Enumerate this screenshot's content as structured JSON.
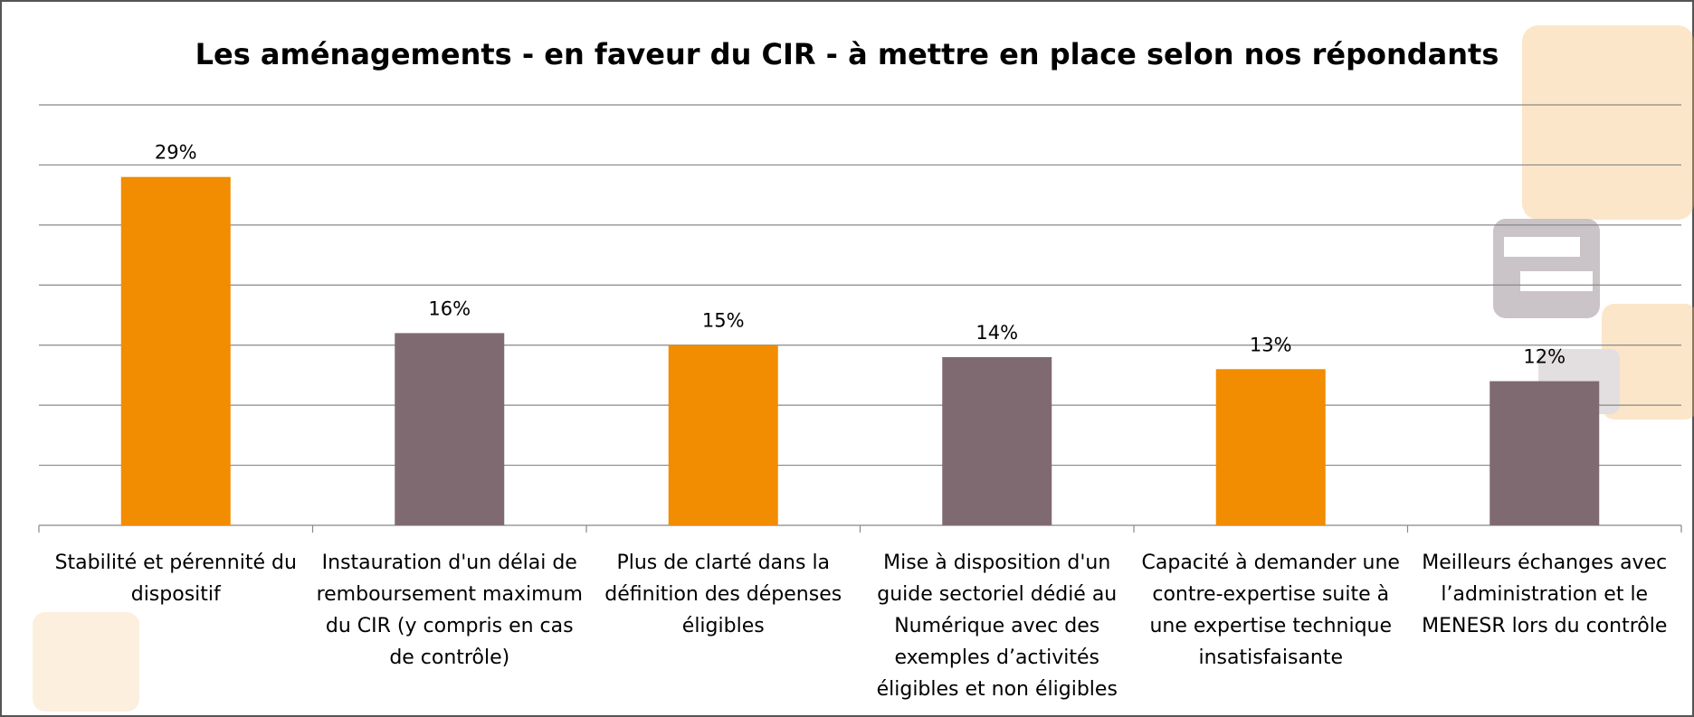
{
  "chart_data": {
    "type": "bar",
    "title": "Les aménagements - en faveur du CIR - à mettre en place selon nos répondants",
    "categories": [
      "Stabilité et pérennité du dispositif",
      "Instauration d'un délai de remboursement maximum du CIR (y compris en cas de contrôle)",
      "Plus de clarté dans la définition des dépenses éligibles",
      "Mise à disposition d'un guide sectoriel dédié au Numérique avec des exemples d’activités éligibles et non éligibles",
      "Capacité à demander une contre-expertise suite à une expertise technique insatisfaisante",
      "Meilleurs échanges avec l’administration et le MENESR lors du contrôle"
    ],
    "values": [
      29,
      16,
      15,
      14,
      13,
      12
    ],
    "value_labels": [
      "29%",
      "16%",
      "15%",
      "14%",
      "13%",
      "12%"
    ],
    "colors": [
      "#f28c00",
      "#806a72",
      "#f28c00",
      "#806a72",
      "#f28c00",
      "#806a72"
    ],
    "ylim": [
      0,
      35
    ],
    "yticks": [
      0,
      5,
      10,
      15,
      20,
      25,
      30,
      35
    ],
    "grid": true
  }
}
